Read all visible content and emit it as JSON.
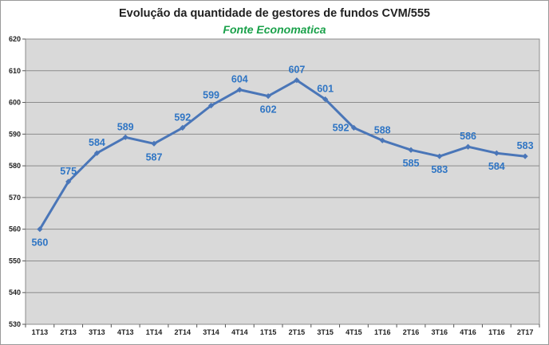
{
  "chart_data": {
    "type": "line",
    "title": "Evolução da quantidade de gestores de fundos CVM/555",
    "subtitle": "Fonte Economatica",
    "xlabel": "",
    "ylabel": "",
    "ylim": [
      530,
      620
    ],
    "yticks": [
      530,
      540,
      550,
      560,
      570,
      580,
      590,
      600,
      610,
      620
    ],
    "grid": true,
    "legend": "none",
    "categories": [
      "1T13",
      "2T13",
      "3T13",
      "4T13",
      "1T14",
      "2T14",
      "3T14",
      "4T14",
      "1T15",
      "2T15",
      "3T15",
      "4T15",
      "1T16",
      "2T16",
      "3T16",
      "4T16",
      "1T16",
      "2T17"
    ],
    "series": [
      {
        "values": [
          560,
          575,
          584,
          589,
          587,
          592,
          599,
          604,
          602,
          607,
          601,
          592,
          588,
          585,
          583,
          586,
          584,
          583
        ]
      }
    ],
    "label_positions": [
      "below",
      "above",
      "above",
      "above",
      "below",
      "above",
      "above",
      "above",
      "below",
      "above",
      "above",
      "left",
      "above",
      "below",
      "below",
      "above",
      "below",
      "above"
    ],
    "colors": {
      "line": "#4a76b8",
      "labels": "#2f75c4",
      "plot_bg": "#d9d9d9",
      "grid": "#8c8c8c"
    }
  }
}
